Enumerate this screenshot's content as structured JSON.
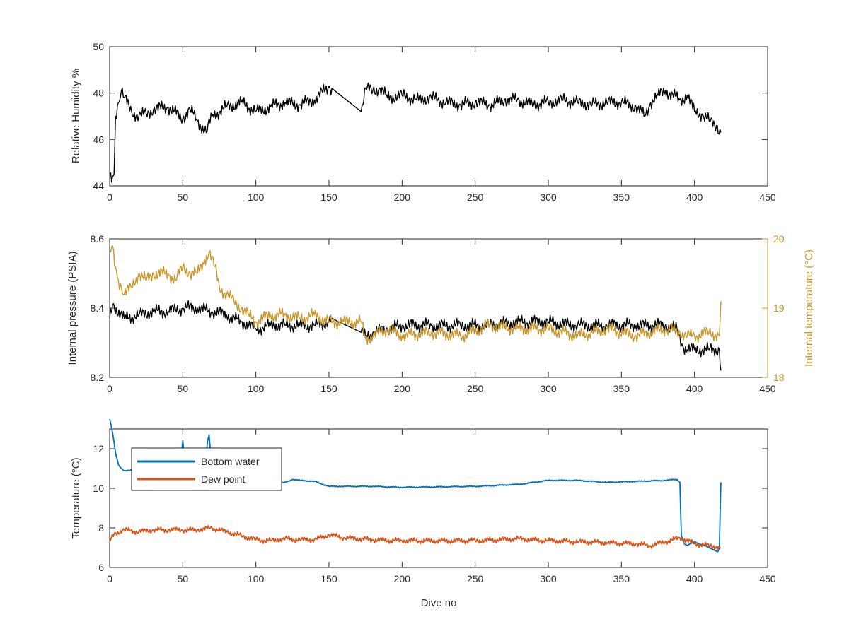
{
  "chart_data": [
    {
      "type": "line",
      "panel": "top",
      "xlabel": "",
      "ylabel": "Relative Humidity %",
      "xlim": [
        0,
        450
      ],
      "ylim": [
        44,
        50
      ],
      "xticks": [
        0,
        50,
        100,
        150,
        200,
        250,
        300,
        350,
        400,
        450
      ],
      "yticks": [
        44,
        46,
        48,
        50
      ],
      "grid": false,
      "series": [
        {
          "name": "",
          "color": "#000000",
          "x": [
            0,
            2,
            3,
            4,
            6,
            8,
            10,
            15,
            20,
            25,
            30,
            40,
            50,
            55,
            60,
            66,
            70,
            80,
            90,
            100,
            110,
            120,
            130,
            140,
            150,
            152,
            172,
            175,
            180,
            185,
            190,
            200,
            210,
            220,
            230,
            240,
            250,
            260,
            270,
            280,
            290,
            300,
            310,
            320,
            330,
            340,
            350,
            360,
            366,
            370,
            375,
            380,
            390,
            395,
            400,
            405,
            410,
            415,
            418
          ],
          "y": [
            44.5,
            44.4,
            44.5,
            47.0,
            47.6,
            48.1,
            47.8,
            47.2,
            47.0,
            47.1,
            47.3,
            47.4,
            46.9,
            47.3,
            46.8,
            46.3,
            47.0,
            47.4,
            47.6,
            47.2,
            47.4,
            47.6,
            47.5,
            47.7,
            48.3,
            48.2,
            47.2,
            48.2,
            48.1,
            48.2,
            47.8,
            47.9,
            47.7,
            47.8,
            47.6,
            47.5,
            47.6,
            47.5,
            47.7,
            47.7,
            47.5,
            47.6,
            47.7,
            47.6,
            47.5,
            47.6,
            47.6,
            47.4,
            47.0,
            47.6,
            47.9,
            48.1,
            47.7,
            47.9,
            47.2,
            47.1,
            46.8,
            46.6,
            46.3
          ]
        }
      ]
    },
    {
      "type": "line",
      "panel": "middle",
      "xlabel": "",
      "ylabel": "Internal pressure (PSIA)",
      "ylabel_right": "Internal temperature (°C)",
      "xlim": [
        0,
        450
      ],
      "ylim": [
        8.2,
        8.6
      ],
      "ylim_right": [
        18,
        20
      ],
      "xticks": [
        0,
        50,
        100,
        150,
        200,
        250,
        300,
        350,
        400,
        450
      ],
      "yticks": [
        8.2,
        8.4,
        8.6
      ],
      "yticks_right": [
        18,
        19,
        20
      ],
      "grid": false,
      "series": [
        {
          "name": "",
          "axis": "left",
          "color": "#000000",
          "x": [
            0,
            2,
            10,
            20,
            30,
            40,
            50,
            60,
            70,
            80,
            90,
            100,
            110,
            120,
            130,
            140,
            150,
            152,
            172,
            175,
            180,
            190,
            200,
            220,
            240,
            260,
            280,
            300,
            320,
            340,
            360,
            380,
            388,
            392,
            395,
            400,
            410,
            417,
            418
          ],
          "y": [
            8.37,
            8.41,
            8.37,
            8.38,
            8.39,
            8.39,
            8.4,
            8.4,
            8.39,
            8.38,
            8.36,
            8.34,
            8.35,
            8.35,
            8.35,
            8.35,
            8.36,
            8.37,
            8.33,
            8.32,
            8.33,
            8.34,
            8.35,
            8.35,
            8.35,
            8.35,
            8.36,
            8.36,
            8.35,
            8.35,
            8.35,
            8.35,
            8.34,
            8.29,
            8.28,
            8.28,
            8.28,
            8.28,
            8.22
          ]
        },
        {
          "name": "",
          "axis": "right",
          "color": "#C8962A",
          "x": [
            0,
            2,
            4,
            6,
            8,
            10,
            15,
            20,
            25,
            30,
            40,
            45,
            50,
            55,
            60,
            65,
            68,
            72,
            75,
            80,
            85,
            90,
            95,
            100,
            110,
            120,
            130,
            140,
            150,
            160,
            172,
            175,
            180,
            190,
            200,
            220,
            240,
            260,
            280,
            300,
            320,
            340,
            360,
            380,
            390,
            395,
            400,
            410,
            417,
            418
          ],
          "y": [
            19.8,
            19.9,
            19.6,
            19.4,
            19.3,
            19.2,
            19.3,
            19.5,
            19.4,
            19.5,
            19.5,
            19.4,
            19.6,
            19.5,
            19.5,
            19.7,
            19.8,
            19.6,
            19.3,
            19.2,
            19.1,
            19.0,
            18.9,
            18.8,
            18.9,
            18.9,
            18.85,
            18.9,
            18.8,
            18.8,
            18.8,
            18.55,
            18.6,
            18.7,
            18.6,
            18.65,
            18.6,
            18.75,
            18.7,
            18.7,
            18.6,
            18.7,
            18.6,
            18.7,
            18.65,
            18.6,
            18.6,
            18.65,
            18.6,
            19.1
          ]
        }
      ]
    },
    {
      "type": "line",
      "panel": "bottom",
      "xlabel": "Dive no",
      "ylabel": "Temperature (°C)",
      "xlim": [
        0,
        450
      ],
      "ylim": [
        6,
        13
      ],
      "xticks": [
        0,
        50,
        100,
        150,
        200,
        250,
        300,
        350,
        400,
        450
      ],
      "yticks": [
        6,
        8,
        10,
        12
      ],
      "grid": false,
      "legend_position": "top-left",
      "series": [
        {
          "name": "Bottom water",
          "color": "#0072BD",
          "x": [
            0,
            2,
            4,
            6,
            8,
            10,
            15,
            20,
            30,
            40,
            48,
            50,
            52,
            55,
            60,
            65,
            67,
            68,
            70,
            75,
            80,
            90,
            100,
            110,
            120,
            125,
            130,
            140,
            150,
            160,
            180,
            200,
            250,
            280,
            300,
            320,
            340,
            360,
            380,
            388,
            390,
            391,
            393,
            395,
            400,
            410,
            416,
            417,
            418
          ],
          "y": [
            13.5,
            12.8,
            11.8,
            11.2,
            11.0,
            10.9,
            10.9,
            10.9,
            10.9,
            10.9,
            10.95,
            12.4,
            11.0,
            11.0,
            11.0,
            11.1,
            12.4,
            12.7,
            11.0,
            10.9,
            10.8,
            10.6,
            10.35,
            10.2,
            10.3,
            10.45,
            10.4,
            10.35,
            10.1,
            10.1,
            10.1,
            10.05,
            10.1,
            10.2,
            10.4,
            10.4,
            10.3,
            10.35,
            10.4,
            10.45,
            10.3,
            7.6,
            7.2,
            7.1,
            7.3,
            7.0,
            6.8,
            7.0,
            10.3
          ]
        },
        {
          "name": "Dew point",
          "color": "#D95319",
          "x": [
            0,
            3,
            10,
            20,
            30,
            40,
            50,
            60,
            70,
            80,
            90,
            100,
            110,
            120,
            130,
            140,
            150,
            160,
            180,
            200,
            250,
            280,
            300,
            320,
            340,
            360,
            370,
            380,
            390,
            400,
            410,
            418
          ],
          "y": [
            7.3,
            7.7,
            7.9,
            7.8,
            7.9,
            7.9,
            7.9,
            7.9,
            8.0,
            7.8,
            7.6,
            7.4,
            7.35,
            7.45,
            7.4,
            7.4,
            7.65,
            7.5,
            7.4,
            7.35,
            7.35,
            7.45,
            7.35,
            7.3,
            7.25,
            7.2,
            7.1,
            7.3,
            7.5,
            7.2,
            7.1,
            7.0
          ]
        }
      ]
    }
  ]
}
